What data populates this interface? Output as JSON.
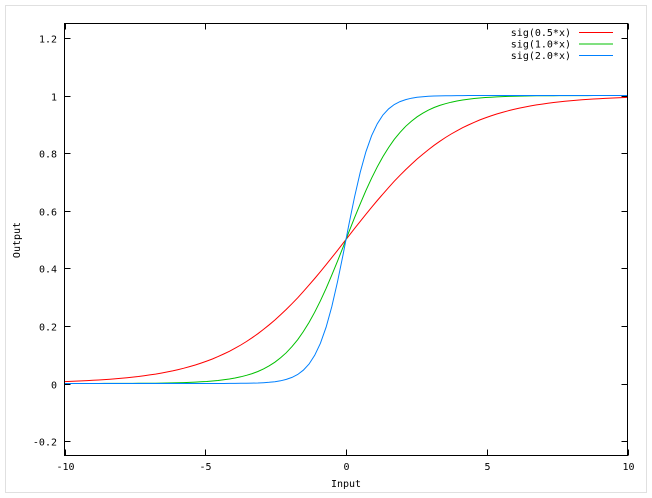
{
  "chart_data": {
    "type": "line",
    "title": "",
    "xlabel": "Input",
    "ylabel": "Output",
    "xlim": [
      -10,
      10
    ],
    "ylim": [
      -0.25,
      1.25
    ],
    "xticks": [
      -10,
      -5,
      0,
      5,
      10
    ],
    "xtick_labels": [
      "-10",
      "-5",
      "0",
      "5",
      "10"
    ],
    "yticks": [
      -0.2,
      0,
      0.2,
      0.4,
      0.6,
      0.8,
      1,
      1.2
    ],
    "ytick_labels": [
      "-0.2",
      "0",
      "0.2",
      "0.4",
      "0.6",
      "0.8",
      "1",
      "1.2"
    ],
    "grid": false,
    "legend_position": "top-right",
    "samples": 100,
    "series": [
      {
        "name": "sig(0.5*x)",
        "function": "1/(1+exp(-k*x))",
        "k": 0.5,
        "color": "#ff0000"
      },
      {
        "name": "sig(1.0*x)",
        "function": "1/(1+exp(-k*x))",
        "k": 1.0,
        "color": "#00c000"
      },
      {
        "name": "sig(2.0*x)",
        "function": "1/(1+exp(-k*x))",
        "k": 2.0,
        "color": "#0080ff"
      }
    ]
  }
}
